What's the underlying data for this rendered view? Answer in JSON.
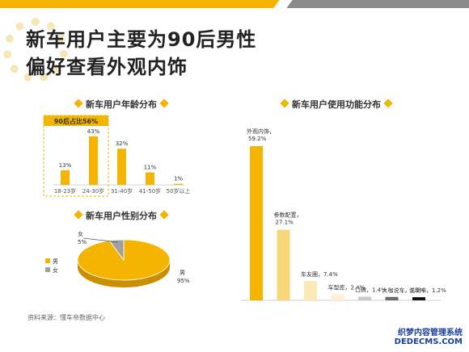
{
  "title_line1": "新车用户主要为90后男性",
  "title_line2": "偏好查看外观内饰",
  "source": "资料来源：懂车帝数据中心",
  "watermark_line1": "织梦内容管理系统",
  "watermark_line2": "DEDECMS.COM",
  "colors": {
    "accent": "#f5b400",
    "gray": "#8a8a8a"
  },
  "chart_data": [
    {
      "type": "bar",
      "title": "新车用户年龄分布",
      "categories": [
        "18-23岁",
        "24-30岁",
        "31-40岁",
        "41-50岁",
        "50岁以上"
      ],
      "values": [
        13,
        43,
        32,
        11,
        1
      ],
      "value_labels": [
        "13%",
        "43%",
        "32%",
        "11%",
        "1%"
      ],
      "highlight_label": "90后占比56%",
      "ylim": [
        0,
        45
      ]
    },
    {
      "type": "pie",
      "title": "新车用户性别分布",
      "labels": [
        "男",
        "女"
      ],
      "values": [
        95,
        5
      ],
      "value_labels": [
        "95%",
        "5%"
      ],
      "colors": [
        "#f5b400",
        "#a0a0a0"
      ],
      "legend": "left"
    },
    {
      "type": "bar",
      "title": "新车用户使用功能分布",
      "categories": [
        "外观内饰",
        "参数配置",
        "车友圈",
        "车型库",
        "口碑",
        "大咖说车",
        "说明书"
      ],
      "labels": [
        "外观内饰，",
        "参数配置，",
        "车友圈，7.4%",
        "车型库，2.4%",
        "口碑，1.4%",
        "大咖说车，1.3%",
        "说明书，1.2%"
      ],
      "value_labels": [
        "59.2%",
        "27.1%",
        "",
        "",
        "",
        "",
        ""
      ],
      "values": [
        59.2,
        27.1,
        7.4,
        2.4,
        1.4,
        1.3,
        1.2
      ],
      "colors": [
        "#f5b400",
        "#f8d77a",
        "#fbe9b6",
        "#fdf2d4",
        "#c9c9c9",
        "#6b6b6b",
        "#111111"
      ],
      "ylim": [
        0,
        62
      ]
    }
  ]
}
